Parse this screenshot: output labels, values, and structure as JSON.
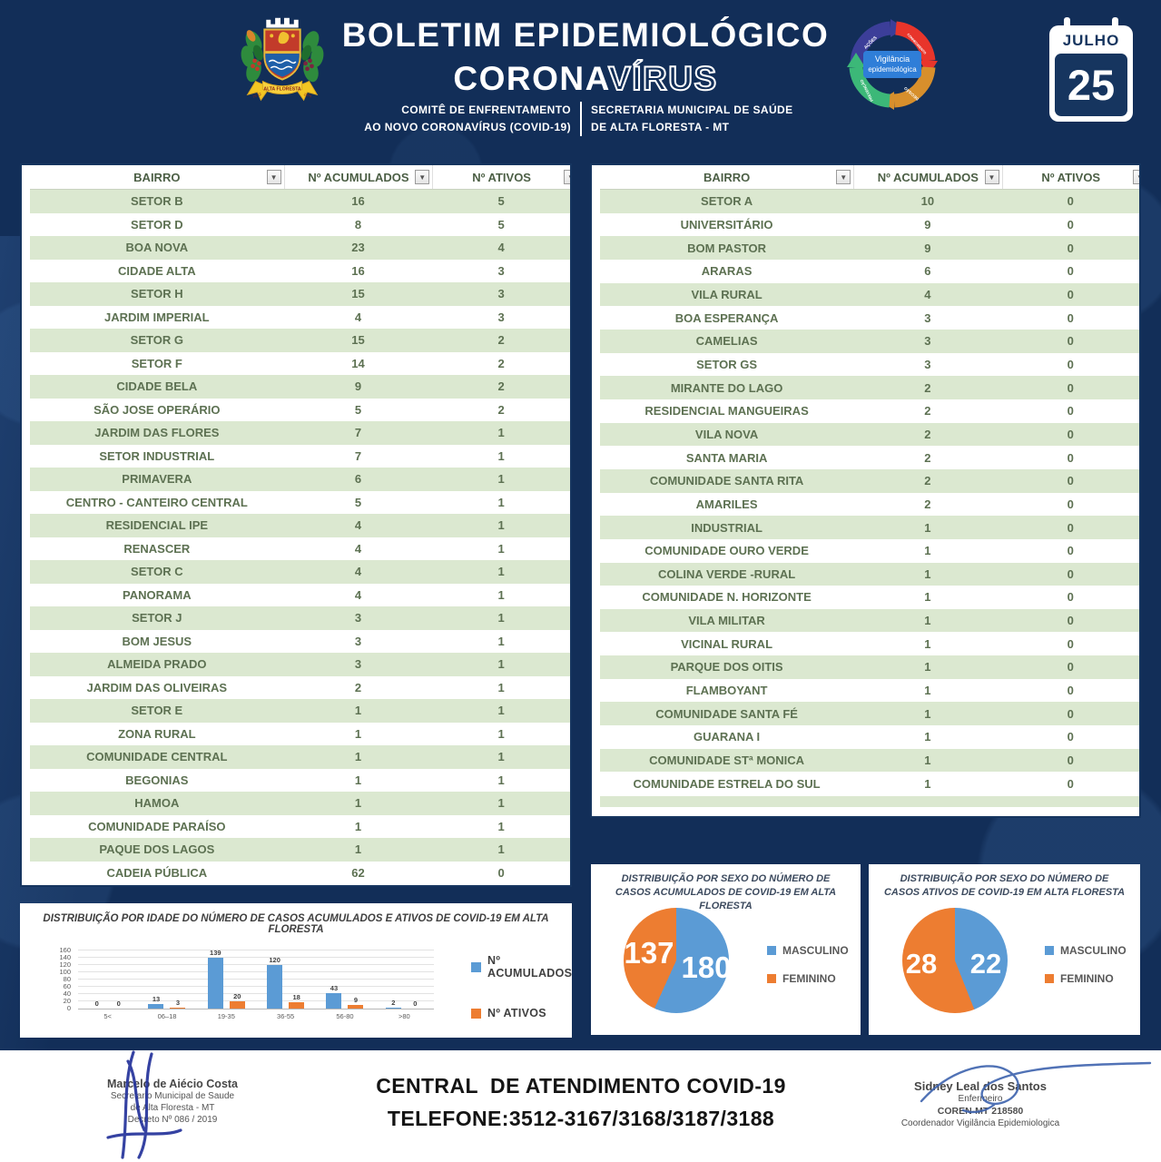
{
  "header": {
    "title_line1": "BOLETIM EPIDEMIOLÓGICO",
    "title_line2_solid": "CORONA",
    "title_line2_outline": "VÍRUS",
    "committee_line1": "COMITÊ DE ENFRENTAMENTO",
    "committee_line2": "AO NOVO CORONAVÍRUS (COVID-19)",
    "secretariat_line1": "SECRETARIA MUNICIPAL DE SAÚDE",
    "secretariat_line2": "DE ALTA FLORESTA - MT",
    "calendar": {
      "month": "JULHO",
      "day": "25"
    },
    "surveillance_logo": {
      "center_line1": "Vigilância",
      "center_line2": "epidemiológica",
      "labels": [
        "AÇÕES",
        "CONHECIMENTO",
        "DECISÃO",
        "PREVENÇÃO"
      ]
    },
    "crest": {
      "ribbon_text": "ALTA FLORESTA",
      "tail_left": "16.12",
      "tail_right": "1979"
    }
  },
  "tables": {
    "columns": [
      "BAIRRO",
      "Nº ACUMULADOS",
      "Nº ATIVOS"
    ],
    "left_rows": [
      [
        "SETOR B",
        16,
        5
      ],
      [
        "SETOR D",
        8,
        5
      ],
      [
        "BOA NOVA",
        23,
        4
      ],
      [
        "CIDADE ALTA",
        16,
        3
      ],
      [
        "SETOR H",
        15,
        3
      ],
      [
        "JARDIM IMPERIAL",
        4,
        3
      ],
      [
        "SETOR G",
        15,
        2
      ],
      [
        "SETOR F",
        14,
        2
      ],
      [
        "CIDADE BELA",
        9,
        2
      ],
      [
        "SÃO JOSE OPERÁRIO",
        5,
        2
      ],
      [
        "JARDIM DAS FLORES",
        7,
        1
      ],
      [
        "SETOR INDUSTRIAL",
        7,
        1
      ],
      [
        "PRIMAVERA",
        6,
        1
      ],
      [
        "CENTRO - CANTEIRO CENTRAL",
        5,
        1
      ],
      [
        "RESIDENCIAL IPE",
        4,
        1
      ],
      [
        "RENASCER",
        4,
        1
      ],
      [
        "SETOR C",
        4,
        1
      ],
      [
        "PANORAMA",
        4,
        1
      ],
      [
        "SETOR J",
        3,
        1
      ],
      [
        "BOM JESUS",
        3,
        1
      ],
      [
        "ALMEIDA PRADO",
        3,
        1
      ],
      [
        "JARDIM DAS OLIVEIRAS",
        2,
        1
      ],
      [
        "SETOR E",
        1,
        1
      ],
      [
        "ZONA RURAL",
        1,
        1
      ],
      [
        "COMUNIDADE CENTRAL",
        1,
        1
      ],
      [
        "BEGONIAS",
        1,
        1
      ],
      [
        "HAMOA",
        1,
        1
      ],
      [
        "COMUNIDADE PARAÍSO",
        1,
        1
      ],
      [
        "PAQUE DOS LAGOS",
        1,
        1
      ],
      [
        "CADEIA PÚBLICA",
        62,
        0
      ]
    ],
    "right_rows": [
      [
        "SETOR A",
        10,
        0
      ],
      [
        "UNIVERSITÁRIO",
        9,
        0
      ],
      [
        "BOM PASTOR",
        9,
        0
      ],
      [
        "ARARAS",
        6,
        0
      ],
      [
        "VILA RURAL",
        4,
        0
      ],
      [
        "BOA ESPERANÇA",
        3,
        0
      ],
      [
        "CAMELIAS",
        3,
        0
      ],
      [
        "SETOR GS",
        3,
        0
      ],
      [
        "MIRANTE DO LAGO",
        2,
        0
      ],
      [
        "RESIDENCIAL MANGUEIRAS",
        2,
        0
      ],
      [
        "VILA NOVA",
        2,
        0
      ],
      [
        "SANTA MARIA",
        2,
        0
      ],
      [
        "COMUNIDADE SANTA RITA",
        2,
        0
      ],
      [
        "AMARILES",
        2,
        0
      ],
      [
        "INDUSTRIAL",
        1,
        0
      ],
      [
        "COMUNIDADE OURO VERDE",
        1,
        0
      ],
      [
        "COLINA VERDE -RURAL",
        1,
        0
      ],
      [
        "COMUNIDADE N. HORIZONTE",
        1,
        0
      ],
      [
        "VILA MILITAR",
        1,
        0
      ],
      [
        "VICINAL RURAL",
        1,
        0
      ],
      [
        "PARQUE DOS OITIS",
        1,
        0
      ],
      [
        "FLAMBOYANT",
        1,
        0
      ],
      [
        "COMUNIDADE SANTA FÉ",
        1,
        0
      ],
      [
        "GUARANA I",
        1,
        0
      ],
      [
        "COMUNIDADE STª MONICA",
        1,
        0
      ],
      [
        "COMUNIDADE ESTRELA DO SUL",
        1,
        0
      ]
    ]
  },
  "chart_data": [
    {
      "type": "bar",
      "title": "DISTRIBUIÇÃO POR IDADE DO NÚMERO DE CASOS ACUMULADOS E ATIVOS DE COVID-19 EM ALTA FLORESTA",
      "categories": [
        "5<",
        "06–18",
        "19-35",
        "36-55",
        "56-80",
        ">80"
      ],
      "series": [
        {
          "name": "Nº ACUMULADOS",
          "color": "#5b9bd5",
          "values": [
            0,
            13,
            139,
            120,
            43,
            2
          ]
        },
        {
          "name": "Nº ATIVOS",
          "color": "#ed7d31",
          "values": [
            0,
            3,
            20,
            18,
            9,
            0
          ]
        }
      ],
      "xlabel": "",
      "ylabel": "",
      "ylim": [
        0,
        160
      ],
      "ytick_step": 20,
      "grid": true,
      "legend_position": "right"
    },
    {
      "type": "pie",
      "title": "DISTRIBUIÇÃO POR SEXO DO NÚMERO DE CASOS ACUMULADOS DE COVID-19 EM ALTA FLORESTA",
      "slices": [
        {
          "label": "MASCULINO",
          "value": 180,
          "color": "#5b9bd5"
        },
        {
          "label": "FEMININO",
          "value": 137,
          "color": "#ed7d31"
        }
      ],
      "legend_position": "right"
    },
    {
      "type": "pie",
      "title": "DISTRIBUIÇÃO POR SEXO DO NÚMERO DE CASOS ATIVOS DE COVID-19 EM ALTA FLORESTA",
      "slices": [
        {
          "label": "MASCULINO",
          "value": 22,
          "color": "#5b9bd5"
        },
        {
          "label": "FEMININO",
          "value": 28,
          "color": "#ed7d31"
        }
      ],
      "legend_position": "right"
    }
  ],
  "footer": {
    "contact_title": "CENTRAL  DE ATENDIMENTO COVID-19",
    "contact_phone": "TELEFONE:3512-3167/3168/3187/3188",
    "left_signature": [
      "Marcelo de Aiécio Costa",
      "Secretario Municipal de Saude",
      "de Alta Floresta - MT",
      "Decreto Nº 086 / 2019"
    ],
    "right_signature": [
      "Sidney Leal dos Santos",
      "Enfermeiro",
      "COREN-MT 218580",
      "Coordenador Vigilância Epidemiologica"
    ]
  },
  "colors": {
    "background": "#122e58",
    "accent_blue": "#5b9bd5",
    "accent_orange": "#ed7d31",
    "table_row_green": "#dbe8d0",
    "table_text": "#5d7152",
    "calendar_navy": "#16355f"
  }
}
